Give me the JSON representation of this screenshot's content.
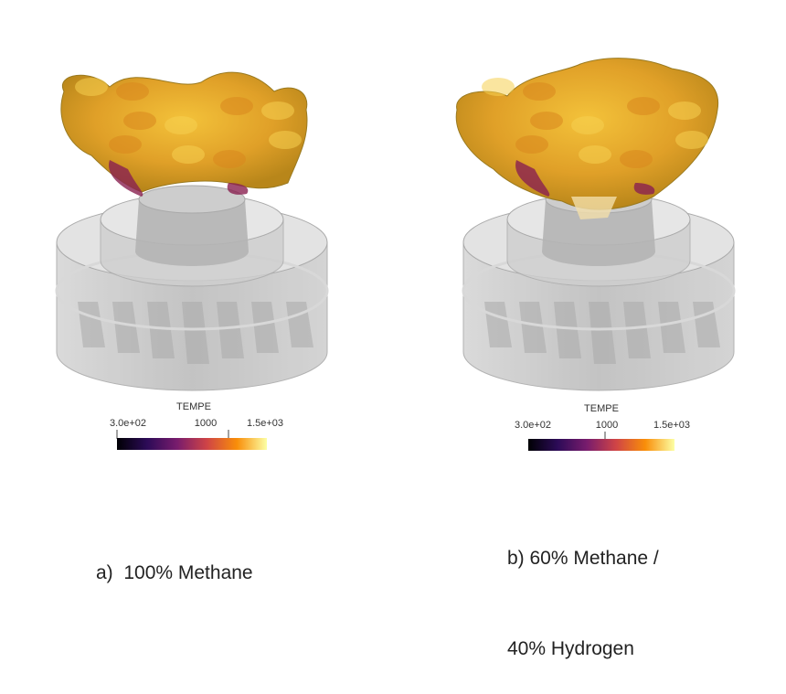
{
  "panels": [
    {
      "id": "a",
      "caption_lines": [
        "a)  100% Methane"
      ],
      "colorbar": {
        "title": "TEMPE",
        "min_label": "3.0e+02",
        "mid_label": "1000",
        "max_label": "1.5e+03",
        "min": 300,
        "max": 1500,
        "colormap": "inferno"
      }
    },
    {
      "id": "b",
      "caption_lines": [
        "b) 60% Methane /",
        "40% Hydrogen"
      ],
      "colorbar": {
        "title": "TEMPE",
        "min_label": "3.0e+02",
        "mid_label": "1000",
        "max_label": "1.5e+03",
        "min": 300,
        "max": 1500,
        "colormap": "inferno"
      }
    }
  ],
  "colors": {
    "burner": "#c8c8c8",
    "flame_hot": "#f2b632",
    "flame_mid": "#d8861e",
    "flame_cool": "#8a2050"
  }
}
